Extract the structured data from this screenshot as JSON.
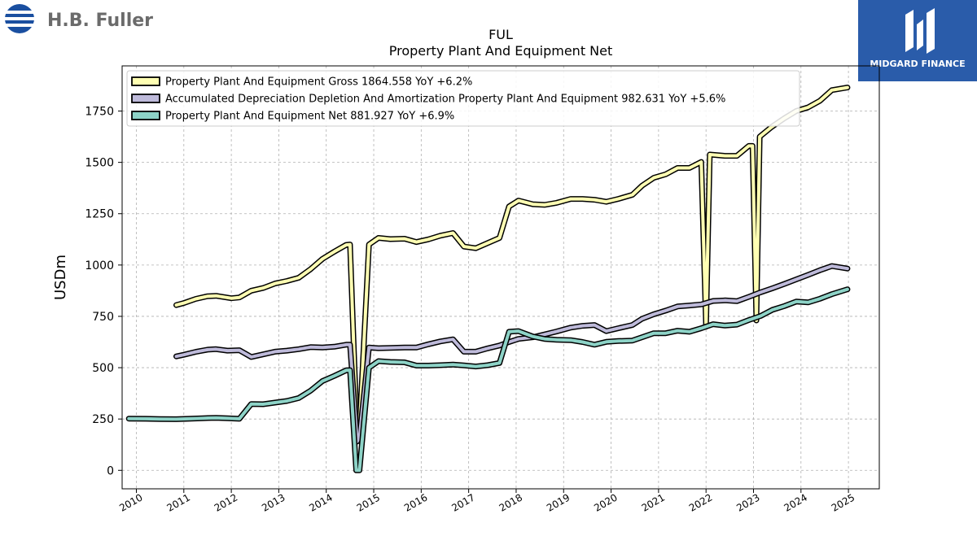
{
  "brand": {
    "company_name": "H.B. Fuller",
    "publisher_name": "MIDGARD FINANCE",
    "company_color": "#1a4fa0",
    "publisher_bg": "#2a5caa"
  },
  "chart_data": {
    "type": "line",
    "title": "FUL",
    "subtitle": "Property Plant And Equipment Net",
    "xlabel": "",
    "ylabel": "USDm",
    "xlim": [
      2009.7,
      2025.65
    ],
    "ylim": [
      -90,
      1970
    ],
    "x_ticks": [
      "2010",
      "2011",
      "2012",
      "2013",
      "2014",
      "2015",
      "2016",
      "2017",
      "2018",
      "2019",
      "2020",
      "2021",
      "2022",
      "2023",
      "2024",
      "2025"
    ],
    "y_ticks": [
      0,
      250,
      500,
      750,
      1000,
      1250,
      1500,
      1750
    ],
    "grid": true,
    "legend_position": "top-left",
    "series": [
      {
        "name": "Property Plant And Equipment Gross",
        "legend_label": "Property Plant And Equipment Gross  1864.558 YoY +6.2%",
        "color": "#ffffb3",
        "points": [
          [
            2010.84,
            805
          ],
          [
            2011.0,
            815
          ],
          [
            2011.25,
            835
          ],
          [
            2011.5,
            848
          ],
          [
            2011.68,
            850
          ],
          [
            2012.0,
            838
          ],
          [
            2012.17,
            842
          ],
          [
            2012.42,
            875
          ],
          [
            2012.67,
            888
          ],
          [
            2012.92,
            910
          ],
          [
            2013.17,
            922
          ],
          [
            2013.42,
            938
          ],
          [
            2013.67,
            980
          ],
          [
            2013.92,
            1030
          ],
          [
            2014.17,
            1065
          ],
          [
            2014.42,
            1098
          ],
          [
            2014.5,
            1100
          ],
          [
            2014.65,
            160
          ],
          [
            2014.7,
            200
          ],
          [
            2014.9,
            1100
          ],
          [
            2015.1,
            1132
          ],
          [
            2015.35,
            1126
          ],
          [
            2015.65,
            1128
          ],
          [
            2015.9,
            1112
          ],
          [
            2016.15,
            1125
          ],
          [
            2016.4,
            1143
          ],
          [
            2016.67,
            1156
          ],
          [
            2016.9,
            1090
          ],
          [
            2017.15,
            1082
          ],
          [
            2017.65,
            1132
          ],
          [
            2017.85,
            1285
          ],
          [
            2018.05,
            1314
          ],
          [
            2018.35,
            1296
          ],
          [
            2018.6,
            1293
          ],
          [
            2018.85,
            1303
          ],
          [
            2019.15,
            1322
          ],
          [
            2019.4,
            1322
          ],
          [
            2019.65,
            1318
          ],
          [
            2019.9,
            1308
          ],
          [
            2020.15,
            1322
          ],
          [
            2020.45,
            1342
          ],
          [
            2020.65,
            1386
          ],
          [
            2020.9,
            1425
          ],
          [
            2021.15,
            1442
          ],
          [
            2021.4,
            1473
          ],
          [
            2021.65,
            1473
          ],
          [
            2021.9,
            1502
          ],
          [
            2022.0,
            700
          ],
          [
            2022.08,
            1538
          ],
          [
            2022.4,
            1532
          ],
          [
            2022.65,
            1532
          ],
          [
            2022.9,
            1580
          ],
          [
            2022.98,
            1580
          ],
          [
            2023.06,
            730
          ],
          [
            2023.13,
            1625
          ],
          [
            2023.38,
            1672
          ],
          [
            2023.65,
            1715
          ],
          [
            2023.9,
            1750
          ],
          [
            2024.15,
            1768
          ],
          [
            2024.4,
            1800
          ],
          [
            2024.65,
            1852
          ],
          [
            2024.98,
            1864.558
          ]
        ]
      },
      {
        "name": "Accumulated Depreciation Depletion And Amortization Property Plant And Equipment",
        "legend_label": "Accumulated Depreciation Depletion And Amortization Property Plant And Equipment  982.631 YoY +5.6%",
        "color": "#bebada",
        "points": [
          [
            2010.84,
            555
          ],
          [
            2011.0,
            563
          ],
          [
            2011.25,
            577
          ],
          [
            2011.5,
            588
          ],
          [
            2011.68,
            590
          ],
          [
            2011.92,
            583
          ],
          [
            2012.17,
            585
          ],
          [
            2012.42,
            552
          ],
          [
            2012.67,
            565
          ],
          [
            2012.92,
            578
          ],
          [
            2013.17,
            583
          ],
          [
            2013.42,
            590
          ],
          [
            2013.67,
            600
          ],
          [
            2013.92,
            598
          ],
          [
            2014.17,
            602
          ],
          [
            2014.42,
            612
          ],
          [
            2014.5,
            612
          ],
          [
            2014.65,
            140
          ],
          [
            2014.7,
            160
          ],
          [
            2014.9,
            598
          ],
          [
            2015.1,
            595
          ],
          [
            2015.35,
            596
          ],
          [
            2015.65,
            598
          ],
          [
            2015.9,
            598
          ],
          [
            2016.15,
            614
          ],
          [
            2016.4,
            628
          ],
          [
            2016.67,
            638
          ],
          [
            2016.9,
            578
          ],
          [
            2017.15,
            578
          ],
          [
            2017.4,
            594
          ],
          [
            2017.65,
            608
          ],
          [
            2017.85,
            625
          ],
          [
            2018.05,
            640
          ],
          [
            2018.35,
            648
          ],
          [
            2018.6,
            662
          ],
          [
            2018.85,
            676
          ],
          [
            2019.15,
            695
          ],
          [
            2019.4,
            704
          ],
          [
            2019.65,
            708
          ],
          [
            2019.9,
            678
          ],
          [
            2020.15,
            692
          ],
          [
            2020.45,
            708
          ],
          [
            2020.65,
            738
          ],
          [
            2020.9,
            760
          ],
          [
            2021.15,
            778
          ],
          [
            2021.4,
            798
          ],
          [
            2021.65,
            803
          ],
          [
            2021.9,
            808
          ],
          [
            2022.15,
            825
          ],
          [
            2022.4,
            828
          ],
          [
            2022.65,
            824
          ],
          [
            2022.9,
            845
          ],
          [
            2023.15,
            867
          ],
          [
            2023.4,
            887
          ],
          [
            2023.65,
            908
          ],
          [
            2023.9,
            930
          ],
          [
            2024.15,
            952
          ],
          [
            2024.4,
            975
          ],
          [
            2024.65,
            995
          ],
          [
            2024.98,
            982.631
          ]
        ]
      },
      {
        "name": "Property Plant And Equipment Net",
        "legend_label": "Property Plant And Equipment Net  881.927 YoY +6.9%",
        "color": "#8dd3c7",
        "points": [
          [
            2009.84,
            252
          ],
          [
            2010.2,
            251
          ],
          [
            2010.5,
            250
          ],
          [
            2010.84,
            249
          ],
          [
            2011.1,
            251
          ],
          [
            2011.4,
            254
          ],
          [
            2011.68,
            256
          ],
          [
            2011.92,
            254
          ],
          [
            2012.17,
            251
          ],
          [
            2012.42,
            323
          ],
          [
            2012.67,
            322
          ],
          [
            2012.92,
            330
          ],
          [
            2013.17,
            338
          ],
          [
            2013.42,
            352
          ],
          [
            2013.67,
            388
          ],
          [
            2013.92,
            435
          ],
          [
            2014.17,
            460
          ],
          [
            2014.42,
            487
          ],
          [
            2014.5,
            488
          ],
          [
            2014.63,
            0
          ],
          [
            2014.7,
            0
          ],
          [
            2014.9,
            500
          ],
          [
            2015.1,
            532
          ],
          [
            2015.35,
            528
          ],
          [
            2015.65,
            526
          ],
          [
            2015.9,
            510
          ],
          [
            2016.15,
            510
          ],
          [
            2016.4,
            512
          ],
          [
            2016.67,
            515
          ],
          [
            2016.9,
            511
          ],
          [
            2017.15,
            506
          ],
          [
            2017.4,
            512
          ],
          [
            2017.65,
            523
          ],
          [
            2017.85,
            675
          ],
          [
            2018.05,
            678
          ],
          [
            2018.35,
            652
          ],
          [
            2018.6,
            640
          ],
          [
            2018.85,
            636
          ],
          [
            2019.15,
            634
          ],
          [
            2019.4,
            625
          ],
          [
            2019.65,
            612
          ],
          [
            2019.9,
            626
          ],
          [
            2020.15,
            630
          ],
          [
            2020.45,
            632
          ],
          [
            2020.65,
            648
          ],
          [
            2020.9,
            668
          ],
          [
            2021.15,
            668
          ],
          [
            2021.4,
            680
          ],
          [
            2021.65,
            675
          ],
          [
            2021.9,
            692
          ],
          [
            2022.15,
            712
          ],
          [
            2022.4,
            705
          ],
          [
            2022.65,
            710
          ],
          [
            2022.9,
            732
          ],
          [
            2023.15,
            752
          ],
          [
            2023.4,
            782
          ],
          [
            2023.65,
            800
          ],
          [
            2023.9,
            822
          ],
          [
            2024.15,
            818
          ],
          [
            2024.4,
            836
          ],
          [
            2024.65,
            858
          ],
          [
            2024.98,
            881.927
          ]
        ]
      }
    ]
  }
}
